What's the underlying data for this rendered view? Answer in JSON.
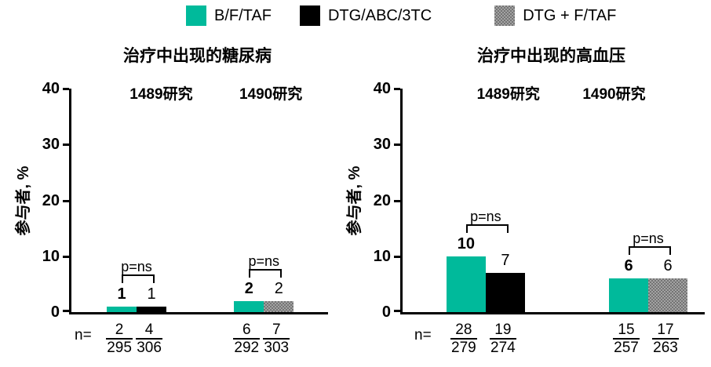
{
  "legend": {
    "items": [
      {
        "label": "B/F/TAF",
        "color": "#00BA9B",
        "pattern": "solid"
      },
      {
        "label": "DTG/ABC/3TC",
        "color": "#000000",
        "pattern": "solid"
      },
      {
        "label": "DTG + F/TAF",
        "color": "#8d8d8d",
        "pattern": "checker"
      }
    ]
  },
  "n_prefix": "n=",
  "series_colors": {
    "B/F/TAF": {
      "color": "#00BA9B",
      "pattern": "solid"
    },
    "DTG/ABC/3TC": {
      "color": "#000000",
      "pattern": "solid"
    },
    "DTG + F/TAF": {
      "color": "#8d8d8d",
      "pattern": "checker"
    }
  },
  "chart_data": [
    {
      "type": "bar",
      "title": "治疗中出现的糖尿病",
      "ylabel": "参与者, %",
      "ylim": [
        0,
        40
      ],
      "yticks": [
        0,
        10,
        20,
        30,
        40
      ],
      "legend_position": "top",
      "grid": false,
      "groups": [
        {
          "study": "1489研究",
          "p_label": "p=ns",
          "bars": [
            {
              "series": "B/F/TAF",
              "value": 1,
              "n": "2",
              "total": "295"
            },
            {
              "series": "DTG/ABC/3TC",
              "value": 1,
              "n": "4",
              "total": "306"
            }
          ]
        },
        {
          "study": "1490研究",
          "p_label": "p=ns",
          "bars": [
            {
              "series": "B/F/TAF",
              "value": 2,
              "n": "6",
              "total": "292"
            },
            {
              "series": "DTG + F/TAF",
              "value": 2,
              "n": "7",
              "total": "303"
            }
          ]
        }
      ]
    },
    {
      "type": "bar",
      "title": "治疗中出现的高血压",
      "ylabel": "参与者, %",
      "ylim": [
        0,
        40
      ],
      "yticks": [
        0,
        10,
        20,
        30,
        40
      ],
      "legend_position": "top",
      "grid": false,
      "groups": [
        {
          "study": "1489研究",
          "p_label": "p=ns",
          "bars": [
            {
              "series": "B/F/TAF",
              "value": 10,
              "n": "28",
              "total": "279"
            },
            {
              "series": "DTG/ABC/3TC",
              "value": 7,
              "n": "19",
              "total": "274"
            }
          ]
        },
        {
          "study": "1490研究",
          "p_label": "p=ns",
          "bars": [
            {
              "series": "B/F/TAF",
              "value": 6,
              "n": "15",
              "total": "257"
            },
            {
              "series": "DTG + F/TAF",
              "value": 6,
              "n": "17",
              "total": "263"
            }
          ]
        }
      ]
    }
  ]
}
